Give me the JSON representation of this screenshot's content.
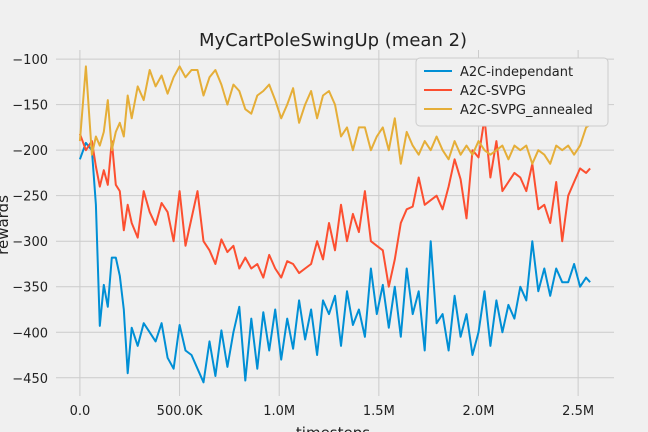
{
  "chart_data": {
    "type": "line",
    "title": "MyCartPoleSwingUp (mean 2)",
    "xlabel": "timesteps",
    "ylabel": "rewards",
    "xlim": [
      -120000,
      2680000
    ],
    "ylim": [
      -470,
      -90
    ],
    "x_ticks": [
      0,
      500000,
      1000000,
      1500000,
      2000000,
      2500000
    ],
    "x_tick_labels": [
      "0.0",
      "500.0K",
      "1.0M",
      "1.5M",
      "2.0M",
      "2.5M"
    ],
    "y_ticks": [
      -450,
      -400,
      -350,
      -300,
      -250,
      -200,
      -150,
      -100
    ],
    "y_tick_labels": [
      "−450",
      "−400",
      "−350",
      "−300",
      "−250",
      "−200",
      "−150",
      "−100"
    ],
    "grid": true,
    "legend_position": "top-right",
    "background": "#f0f0f0",
    "series": [
      {
        "name": "A2C-independant",
        "color": "#008fd5",
        "x": [
          0,
          30000,
          60000,
          80000,
          100000,
          120000,
          140000,
          160000,
          180000,
          200000,
          220000,
          240000,
          260000,
          290000,
          320000,
          350000,
          380000,
          410000,
          440000,
          470000,
          500000,
          530000,
          560000,
          590000,
          620000,
          650000,
          680000,
          710000,
          740000,
          770000,
          800000,
          830000,
          860000,
          890000,
          920000,
          950000,
          980000,
          1010000,
          1040000,
          1070000,
          1100000,
          1130000,
          1160000,
          1190000,
          1220000,
          1250000,
          1280000,
          1310000,
          1340000,
          1370000,
          1400000,
          1430000,
          1460000,
          1490000,
          1520000,
          1550000,
          1580000,
          1610000,
          1640000,
          1670000,
          1700000,
          1730000,
          1760000,
          1790000,
          1820000,
          1850000,
          1880000,
          1910000,
          1940000,
          1970000,
          2000000,
          2030000,
          2060000,
          2090000,
          2120000,
          2150000,
          2180000,
          2210000,
          2240000,
          2270000,
          2300000,
          2330000,
          2360000,
          2390000,
          2420000,
          2450000,
          2480000,
          2510000,
          2540000,
          2560000
        ],
        "y": [
          -210,
          -192,
          -200,
          -260,
          -393,
          -348,
          -372,
          -318,
          -318,
          -338,
          -375,
          -445,
          -395,
          -415,
          -390,
          -400,
          -410,
          -390,
          -428,
          -440,
          -392,
          -420,
          -425,
          -440,
          -455,
          -410,
          -448,
          -398,
          -438,
          -400,
          -372,
          -453,
          -385,
          -440,
          -378,
          -420,
          -375,
          -430,
          -385,
          -418,
          -365,
          -408,
          -375,
          -425,
          -365,
          -380,
          -360,
          -415,
          -355,
          -392,
          -375,
          -405,
          -330,
          -380,
          -348,
          -395,
          -350,
          -405,
          -330,
          -380,
          -355,
          -420,
          -300,
          -390,
          -380,
          -420,
          -360,
          -405,
          -380,
          -425,
          -400,
          -355,
          -415,
          -365,
          -400,
          -370,
          -385,
          -350,
          -365,
          -300,
          -355,
          -330,
          -360,
          -330,
          -345,
          -345,
          -325,
          -350,
          -340,
          -345
        ]
      },
      {
        "name": "A2C-SVPG",
        "color": "#fc4f30",
        "x": [
          0,
          30000,
          60000,
          80000,
          100000,
          120000,
          140000,
          160000,
          180000,
          200000,
          220000,
          240000,
          260000,
          290000,
          320000,
          350000,
          380000,
          410000,
          440000,
          470000,
          500000,
          530000,
          560000,
          590000,
          620000,
          650000,
          680000,
          710000,
          740000,
          770000,
          800000,
          830000,
          860000,
          890000,
          920000,
          950000,
          980000,
          1010000,
          1040000,
          1070000,
          1100000,
          1130000,
          1160000,
          1190000,
          1220000,
          1250000,
          1280000,
          1310000,
          1340000,
          1370000,
          1400000,
          1430000,
          1460000,
          1490000,
          1520000,
          1550000,
          1580000,
          1610000,
          1640000,
          1670000,
          1700000,
          1730000,
          1760000,
          1790000,
          1820000,
          1850000,
          1880000,
          1910000,
          1940000,
          1970000,
          2000000,
          2030000,
          2060000,
          2090000,
          2120000,
          2150000,
          2180000,
          2210000,
          2240000,
          2270000,
          2300000,
          2330000,
          2360000,
          2390000,
          2420000,
          2450000,
          2480000,
          2510000,
          2540000,
          2560000
        ],
        "y": [
          -182,
          -200,
          -190,
          -218,
          -240,
          -222,
          -238,
          -190,
          -238,
          -245,
          -288,
          -260,
          -280,
          -296,
          -245,
          -268,
          -282,
          -258,
          -268,
          -300,
          -245,
          -305,
          -275,
          -245,
          -300,
          -310,
          -325,
          -298,
          -312,
          -305,
          -330,
          -318,
          -330,
          -325,
          -340,
          -315,
          -330,
          -340,
          -322,
          -325,
          -335,
          -330,
          -325,
          -300,
          -320,
          -280,
          -310,
          -260,
          -300,
          -270,
          -290,
          -245,
          -300,
          -305,
          -310,
          -350,
          -320,
          -280,
          -265,
          -262,
          -230,
          -260,
          -255,
          -250,
          -265,
          -240,
          -210,
          -232,
          -275,
          -200,
          -208,
          -165,
          -230,
          -190,
          -245,
          -235,
          -225,
          -230,
          -245,
          -215,
          -265,
          -260,
          -280,
          -235,
          -300,
          -250,
          -235,
          -220,
          -225,
          -220
        ]
      },
      {
        "name": "A2C-SVPG_annealed",
        "color": "#e5ae38",
        "x": [
          0,
          30000,
          60000,
          80000,
          100000,
          120000,
          140000,
          160000,
          180000,
          200000,
          220000,
          240000,
          260000,
          290000,
          320000,
          350000,
          380000,
          410000,
          440000,
          470000,
          500000,
          530000,
          560000,
          590000,
          620000,
          650000,
          680000,
          710000,
          740000,
          770000,
          800000,
          830000,
          860000,
          890000,
          920000,
          950000,
          980000,
          1010000,
          1040000,
          1070000,
          1100000,
          1130000,
          1160000,
          1190000,
          1220000,
          1250000,
          1280000,
          1310000,
          1340000,
          1370000,
          1400000,
          1430000,
          1460000,
          1490000,
          1520000,
          1550000,
          1580000,
          1610000,
          1640000,
          1670000,
          1700000,
          1730000,
          1760000,
          1790000,
          1820000,
          1850000,
          1880000,
          1910000,
          1940000,
          1970000,
          2000000,
          2030000,
          2060000,
          2090000,
          2120000,
          2150000,
          2180000,
          2210000,
          2240000,
          2270000,
          2300000,
          2330000,
          2360000,
          2390000,
          2420000,
          2450000,
          2480000,
          2510000,
          2540000,
          2560000
        ],
        "y": [
          -190,
          -108,
          -205,
          -185,
          -195,
          -180,
          -145,
          -200,
          -180,
          -170,
          -185,
          -140,
          -165,
          -130,
          -145,
          -112,
          -130,
          -118,
          -138,
          -120,
          -108,
          -120,
          -112,
          -112,
          -140,
          -120,
          -112,
          -128,
          -150,
          -128,
          -135,
          -155,
          -160,
          -140,
          -135,
          -128,
          -145,
          -165,
          -150,
          -132,
          -170,
          -150,
          -135,
          -165,
          -140,
          -135,
          -150,
          -185,
          -175,
          -200,
          -175,
          -175,
          -200,
          -185,
          -175,
          -200,
          -165,
          -215,
          -180,
          -195,
          -205,
          -190,
          -200,
          -185,
          -200,
          -210,
          -190,
          -205,
          -195,
          -205,
          -190,
          -200,
          -205,
          -200,
          -195,
          -210,
          -195,
          -200,
          -195,
          -215,
          -200,
          -205,
          -215,
          -195,
          -200,
          -195,
          -205,
          -195,
          -175,
          -172
        ]
      }
    ]
  }
}
